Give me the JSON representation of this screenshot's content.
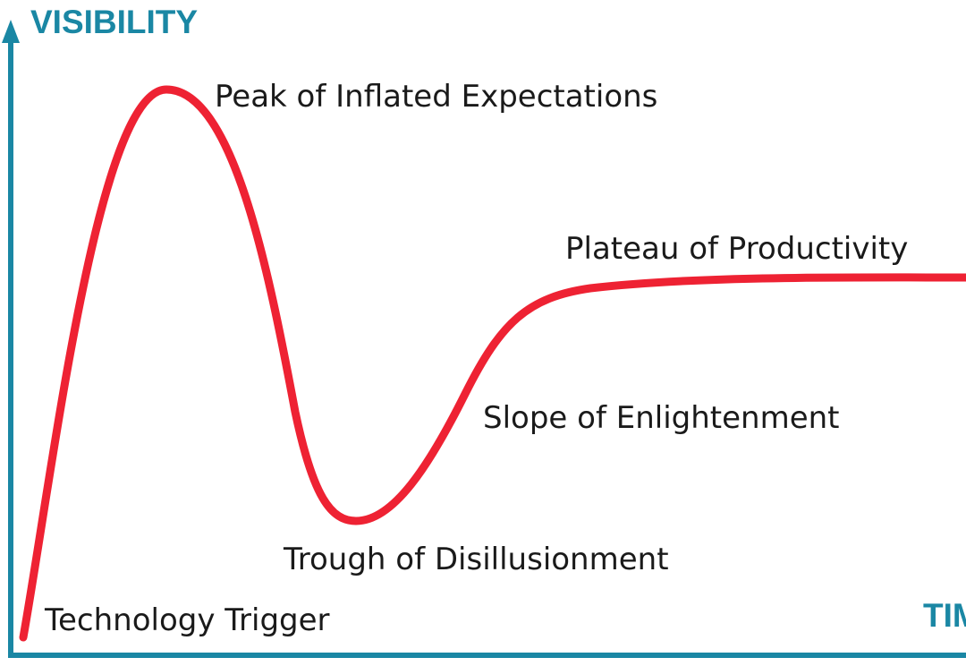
{
  "axes": {
    "y_label": "VISIBILITY",
    "x_label": "TIME",
    "color": "#1a87a4"
  },
  "curve": {
    "color": "#ee2233"
  },
  "phases": [
    "Technology Trigger",
    "Peak of Inflated Expectations",
    "Trough of Disillusionment",
    "Slope of Enlightenment",
    "Plateau of Productivity"
  ]
}
